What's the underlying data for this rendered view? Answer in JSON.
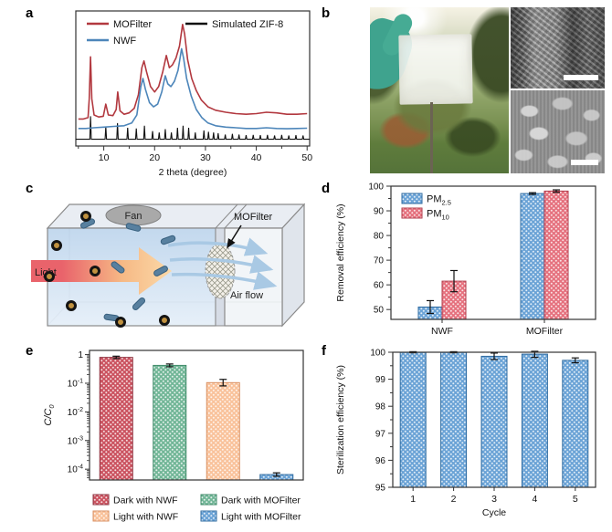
{
  "panel_labels": {
    "a": "a",
    "b": "b",
    "c": "c",
    "d": "d",
    "e": "e",
    "f": "f"
  },
  "diagram_c": {
    "fan_label": "Fan",
    "light_label": "Light",
    "mofilter_label": "MOFilter",
    "airflow_label": "Air flow"
  },
  "chart_data": [
    {
      "panel": "a",
      "type": "line",
      "xlabel": "2 theta (degree)",
      "xlim": [
        4.5,
        50.5
      ],
      "xticks": [
        10,
        20,
        30,
        40,
        50
      ],
      "legend": [
        {
          "name": "MOFilter",
          "color": "#b2383f"
        },
        {
          "name": "NWF",
          "color": "#4d86ba"
        },
        {
          "name": "Simulated ZIF-8",
          "color": "#111111"
        }
      ],
      "series": [
        {
          "name": "MOFilter",
          "color": "#b2383f",
          "points": [
            [
              5,
              0.2
            ],
            [
              6,
              0.2
            ],
            [
              6.9,
              0.21
            ],
            [
              7.15,
              0.35
            ],
            [
              7.4,
              0.66
            ],
            [
              7.65,
              0.35
            ],
            [
              8.1,
              0.23
            ],
            [
              9,
              0.215
            ],
            [
              9.9,
              0.22
            ],
            [
              10.4,
              0.31
            ],
            [
              10.9,
              0.23
            ],
            [
              11.8,
              0.225
            ],
            [
              12.45,
              0.27
            ],
            [
              12.75,
              0.4
            ],
            [
              13.2,
              0.26
            ],
            [
              14,
              0.235
            ],
            [
              15,
              0.245
            ],
            [
              16,
              0.28
            ],
            [
              16.8,
              0.38
            ],
            [
              17.5,
              0.58
            ],
            [
              17.9,
              0.63
            ],
            [
              18.4,
              0.55
            ],
            [
              19.2,
              0.44
            ],
            [
              20,
              0.4
            ],
            [
              20.8,
              0.44
            ],
            [
              21.6,
              0.55
            ],
            [
              22.3,
              0.67
            ],
            [
              22.9,
              0.58
            ],
            [
              23.5,
              0.6
            ],
            [
              24.2,
              0.65
            ],
            [
              24.9,
              0.74
            ],
            [
              25.5,
              0.9
            ],
            [
              25.9,
              0.83
            ],
            [
              26.5,
              0.64
            ],
            [
              27.3,
              0.5
            ],
            [
              28.2,
              0.41
            ],
            [
              29.2,
              0.34
            ],
            [
              30.5,
              0.29
            ],
            [
              32,
              0.265
            ],
            [
              34,
              0.25
            ],
            [
              36,
              0.24
            ],
            [
              38,
              0.235
            ],
            [
              40,
              0.24
            ],
            [
              42,
              0.25
            ],
            [
              44,
              0.245
            ],
            [
              46,
              0.235
            ],
            [
              48,
              0.235
            ],
            [
              50,
              0.24
            ]
          ]
        },
        {
          "name": "NWF",
          "color": "#4d86ba",
          "points": [
            [
              5,
              0.13
            ],
            [
              6.5,
              0.13
            ],
            [
              8,
              0.135
            ],
            [
              10,
              0.14
            ],
            [
              12,
              0.145
            ],
            [
              14,
              0.15
            ],
            [
              15.5,
              0.17
            ],
            [
              16.5,
              0.23
            ],
            [
              17.3,
              0.44
            ],
            [
              17.7,
              0.5
            ],
            [
              18.2,
              0.42
            ],
            [
              19,
              0.32
            ],
            [
              19.8,
              0.29
            ],
            [
              20.6,
              0.31
            ],
            [
              21.4,
              0.4
            ],
            [
              22.1,
              0.52
            ],
            [
              22.6,
              0.46
            ],
            [
              23.2,
              0.44
            ],
            [
              23.9,
              0.48
            ],
            [
              24.6,
              0.56
            ],
            [
              25.3,
              0.72
            ],
            [
              25.7,
              0.65
            ],
            [
              26.3,
              0.5
            ],
            [
              27.2,
              0.37
            ],
            [
              28.2,
              0.27
            ],
            [
              29.3,
              0.21
            ],
            [
              30.5,
              0.17
            ],
            [
              32,
              0.15
            ],
            [
              34,
              0.14
            ],
            [
              36,
              0.135
            ],
            [
              38,
              0.13
            ],
            [
              40,
              0.13
            ],
            [
              42,
              0.135
            ],
            [
              44,
              0.13
            ],
            [
              46,
              0.128
            ],
            [
              48,
              0.13
            ],
            [
              50,
              0.132
            ]
          ]
        }
      ],
      "stick_series": {
        "name": "Simulated ZIF-8",
        "color": "#111111",
        "baseline": 0.05,
        "peaks": [
          [
            7.4,
            0.17
          ],
          [
            10.4,
            0.095
          ],
          [
            12.7,
            0.12
          ],
          [
            14.7,
            0.085
          ],
          [
            16.4,
            0.08
          ],
          [
            18.0,
            0.1
          ],
          [
            19.6,
            0.06
          ],
          [
            20.9,
            0.05
          ],
          [
            22.1,
            0.075
          ],
          [
            23.3,
            0.05
          ],
          [
            24.5,
            0.085
          ],
          [
            25.6,
            0.1
          ],
          [
            26.7,
            0.085
          ],
          [
            28.0,
            0.05
          ],
          [
            29.7,
            0.065
          ],
          [
            30.6,
            0.055
          ],
          [
            31.6,
            0.05
          ],
          [
            32.5,
            0.045
          ],
          [
            33.9,
            0.035
          ],
          [
            35.3,
            0.04
          ],
          [
            36.6,
            0.035
          ],
          [
            38.0,
            0.03
          ],
          [
            39.4,
            0.032
          ],
          [
            40.8,
            0.03
          ],
          [
            42.2,
            0.032
          ],
          [
            43.6,
            0.028
          ],
          [
            45.0,
            0.032
          ],
          [
            46.4,
            0.028
          ],
          [
            47.8,
            0.03
          ],
          [
            49.2,
            0.028
          ]
        ]
      }
    },
    {
      "panel": "d",
      "type": "bar",
      "ylabel": "Removal efficiency (%)",
      "ylim": [
        46,
        100
      ],
      "yticks": [
        50,
        60,
        70,
        80,
        90,
        100
      ],
      "categories": [
        "NWF",
        "MOFilter"
      ],
      "legend": true,
      "series": [
        {
          "name": "PM",
          "sub": "2.5",
          "color": "#6ba3d6",
          "edge": "#2f6ba0",
          "values": [
            51,
            97
          ],
          "errors": [
            2.6,
            0.35
          ]
        },
        {
          "name": "PM",
          "sub": "10",
          "color": "#e5717e",
          "edge": "#b23b4b",
          "values": [
            61.5,
            98
          ],
          "errors": [
            4.3,
            0.5
          ]
        }
      ]
    },
    {
      "panel": "e",
      "type": "bar-log",
      "ylabel": {
        "text": "C/C",
        "sub": "0"
      },
      "ylim": [
        4.2e-05,
        1.4
      ],
      "yticks": [
        1,
        0.1,
        0.01,
        0.001,
        0.0001
      ],
      "bars": [
        {
          "label": "Dark with NWF",
          "color": "#cb5360",
          "edge": "#8e3340",
          "value": 0.8,
          "error_factor": 1.1
        },
        {
          "label": "Dark with MOFilter",
          "color": "#72b697",
          "edge": "#3f8a68",
          "value": 0.42,
          "error_factor": 1.12
        },
        {
          "label": "Light with NWF",
          "color": "#f9c29b",
          "edge": "#d98f60",
          "value": 0.105,
          "error_factor": 1.3
        },
        {
          "label": "Light with MOFilter",
          "color": "#6ba3d6",
          "edge": "#2f6ba0",
          "value": 6.5e-05,
          "error_factor": 1.15
        }
      ],
      "legend_rows": [
        [
          0,
          1
        ],
        [
          2,
          3
        ]
      ]
    },
    {
      "panel": "f",
      "type": "bar",
      "ylabel": "Sterilization efficiency (%)",
      "xlabel": "Cycle",
      "ylim": [
        95,
        100
      ],
      "yticks": [
        95,
        96,
        97,
        98,
        99,
        100
      ],
      "categories": [
        "1",
        "2",
        "3",
        "4",
        "5"
      ],
      "legend": false,
      "series": [
        {
          "name": "Sterilization",
          "color": "#6ba3d6",
          "edge": "#2f6ba0",
          "values": [
            100,
            100,
            99.85,
            99.93,
            99.7
          ],
          "errors": [
            0.02,
            0.02,
            0.12,
            0.12,
            0.09
          ]
        }
      ]
    }
  ]
}
